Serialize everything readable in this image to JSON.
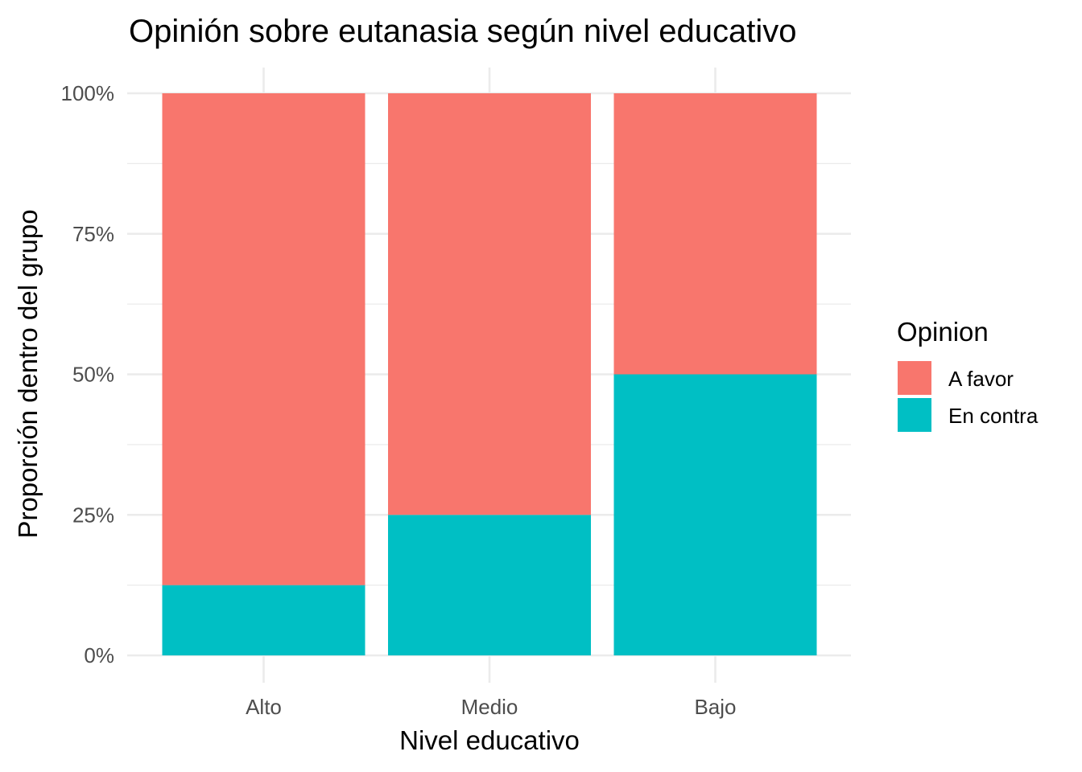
{
  "chart_data": {
    "type": "bar",
    "stacked": true,
    "title": "Opinión sobre eutanasia según nivel educativo",
    "xlabel": "Nivel educativo",
    "ylabel": "Proporción dentro del grupo",
    "categories": [
      "Alto",
      "Medio",
      "Bajo"
    ],
    "series": [
      {
        "name": "A favor",
        "color": "#F8766D",
        "values": [
          0.875,
          0.75,
          0.5
        ]
      },
      {
        "name": "En contra",
        "color": "#00BFC4",
        "values": [
          0.125,
          0.25,
          0.5
        ]
      }
    ],
    "ylim": [
      0,
      1
    ],
    "yticks": [
      0,
      0.25,
      0.5,
      0.75,
      1
    ],
    "ytick_labels": [
      "0%",
      "25%",
      "50%",
      "75%",
      "100%"
    ],
    "grid": true,
    "legend": {
      "title": "Opinion",
      "position": "right"
    }
  }
}
